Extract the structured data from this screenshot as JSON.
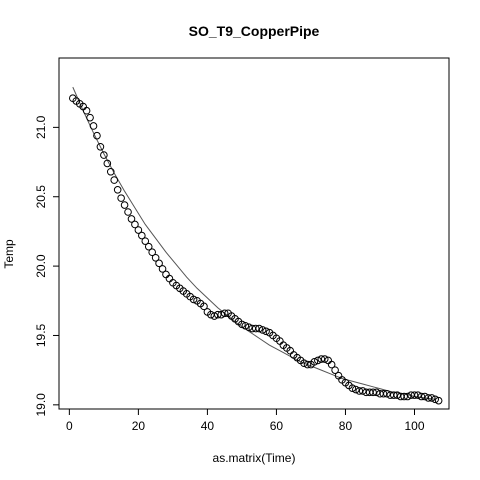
{
  "chart_data": {
    "type": "scatter",
    "title": "SO_T9_CopperPipe",
    "xlabel": "as.matrix(Time)",
    "ylabel": "Temp",
    "xlim": [
      -3,
      110
    ],
    "ylim": [
      18.97,
      21.5
    ],
    "x_ticks": [
      0,
      20,
      40,
      60,
      80,
      100
    ],
    "y_ticks": [
      19.0,
      19.5,
      20.0,
      20.5,
      21.0
    ],
    "y_tick_labels": [
      "19.0",
      "19.5",
      "20.0",
      "20.5",
      "21.0"
    ],
    "grid": false,
    "legend": "none",
    "points": {
      "x": [
        1,
        2,
        3,
        4,
        5,
        6,
        7,
        8,
        9,
        10,
        11,
        12,
        13,
        14,
        15,
        16,
        17,
        18,
        19,
        20,
        21,
        22,
        23,
        24,
        25,
        26,
        27,
        28,
        29,
        30,
        31,
        32,
        33,
        34,
        35,
        36,
        37,
        38,
        39,
        40,
        41,
        42,
        43,
        44,
        45,
        46,
        47,
        48,
        49,
        50,
        51,
        52,
        53,
        54,
        55,
        56,
        57,
        58,
        59,
        60,
        61,
        62,
        63,
        64,
        65,
        66,
        67,
        68,
        69,
        70,
        71,
        72,
        73,
        74,
        75,
        76,
        77,
        78,
        79,
        80,
        81,
        82,
        83,
        84,
        85,
        86,
        87,
        88,
        89,
        90,
        91,
        92,
        93,
        94,
        95,
        96,
        97,
        98,
        99,
        100,
        101,
        102,
        103,
        104,
        105,
        106,
        107
      ],
      "y": [
        21.21,
        21.19,
        21.17,
        21.15,
        21.12,
        21.07,
        21.01,
        20.94,
        20.86,
        20.8,
        20.74,
        20.68,
        20.62,
        20.55,
        20.49,
        20.44,
        20.39,
        20.34,
        20.3,
        20.26,
        20.22,
        20.18,
        20.14,
        20.1,
        20.06,
        20.02,
        19.98,
        19.94,
        19.91,
        19.88,
        19.86,
        19.84,
        19.82,
        19.8,
        19.78,
        19.76,
        19.75,
        19.73,
        19.71,
        19.67,
        19.65,
        19.64,
        19.65,
        19.65,
        19.66,
        19.66,
        19.64,
        19.62,
        19.6,
        19.58,
        19.57,
        19.56,
        19.55,
        19.55,
        19.55,
        19.54,
        19.53,
        19.52,
        19.5,
        19.48,
        19.46,
        19.43,
        19.41,
        19.39,
        19.36,
        19.34,
        19.32,
        19.3,
        19.29,
        19.29,
        19.31,
        19.32,
        19.33,
        19.33,
        19.32,
        19.29,
        19.25,
        19.21,
        19.18,
        19.16,
        19.14,
        19.12,
        19.11,
        19.1,
        19.1,
        19.09,
        19.09,
        19.09,
        19.09,
        19.08,
        19.08,
        19.08,
        19.07,
        19.07,
        19.07,
        19.06,
        19.06,
        19.06,
        19.07,
        19.07,
        19.07,
        19.06,
        19.06,
        19.05,
        19.05,
        19.04,
        19.03
      ]
    },
    "fit_curve": {
      "x": [
        1,
        4,
        7,
        10,
        13,
        16,
        19,
        22,
        25,
        28,
        31,
        34,
        37,
        40,
        43,
        46,
        49,
        52,
        55,
        58,
        61,
        64,
        67,
        70,
        73,
        76,
        79,
        82,
        85,
        88,
        91,
        94,
        97,
        100,
        103,
        106
      ],
      "y": [
        21.29,
        21.12,
        20.96,
        20.81,
        20.67,
        20.54,
        20.42,
        20.3,
        20.2,
        20.1,
        20.01,
        19.92,
        19.84,
        19.77,
        19.7,
        19.64,
        19.58,
        19.53,
        19.48,
        19.43,
        19.39,
        19.35,
        19.31,
        19.28,
        19.25,
        19.22,
        19.19,
        19.17,
        19.15,
        19.13,
        19.11,
        19.09,
        19.08,
        19.06,
        19.05,
        19.04
      ]
    }
  }
}
